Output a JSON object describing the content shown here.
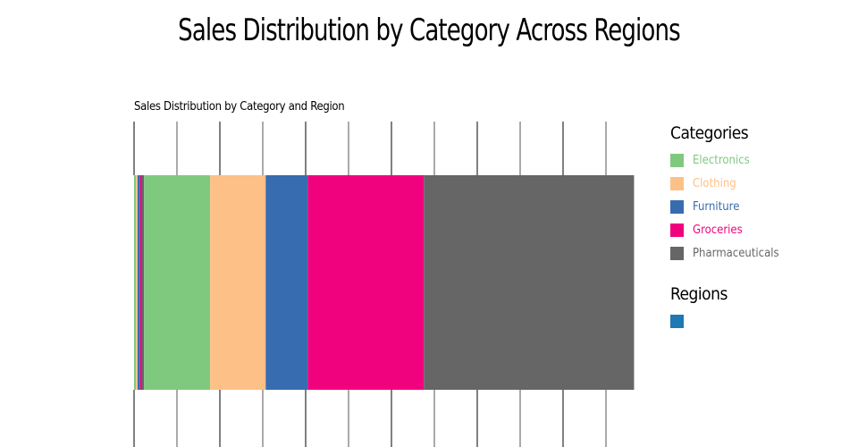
{
  "chart_data": {
    "type": "bar",
    "orientation": "horizontal-stacked",
    "title": "Sales Distribution by Category Across Regions",
    "subtitle": "Sales Distribution by Category and Region",
    "unit": "percent of total (estimated)",
    "xlim": [
      0,
      100
    ],
    "grid": true,
    "legend_placement": "right",
    "categories": [
      "Electronics",
      "Clothing",
      "Furniture",
      "Groceries",
      "Pharmaceuticals"
    ],
    "colors": [
      "#7fc97f",
      "#fdc086",
      "#386cb0",
      "#f0027f",
      "#666666"
    ],
    "segments": [
      {
        "group": 1,
        "values": [
          0.4,
          0.3,
          0.5,
          0.4,
          0.4
        ]
      },
      {
        "group": 2,
        "values": [
          13.2,
          11.1,
          8.4,
          23.2,
          42.0
        ]
      }
    ],
    "legend": {
      "categories_title": "Categories",
      "regions_title": "Regions",
      "regions": [
        {
          "label": "",
          "color": "#1f77b4"
        }
      ]
    }
  }
}
